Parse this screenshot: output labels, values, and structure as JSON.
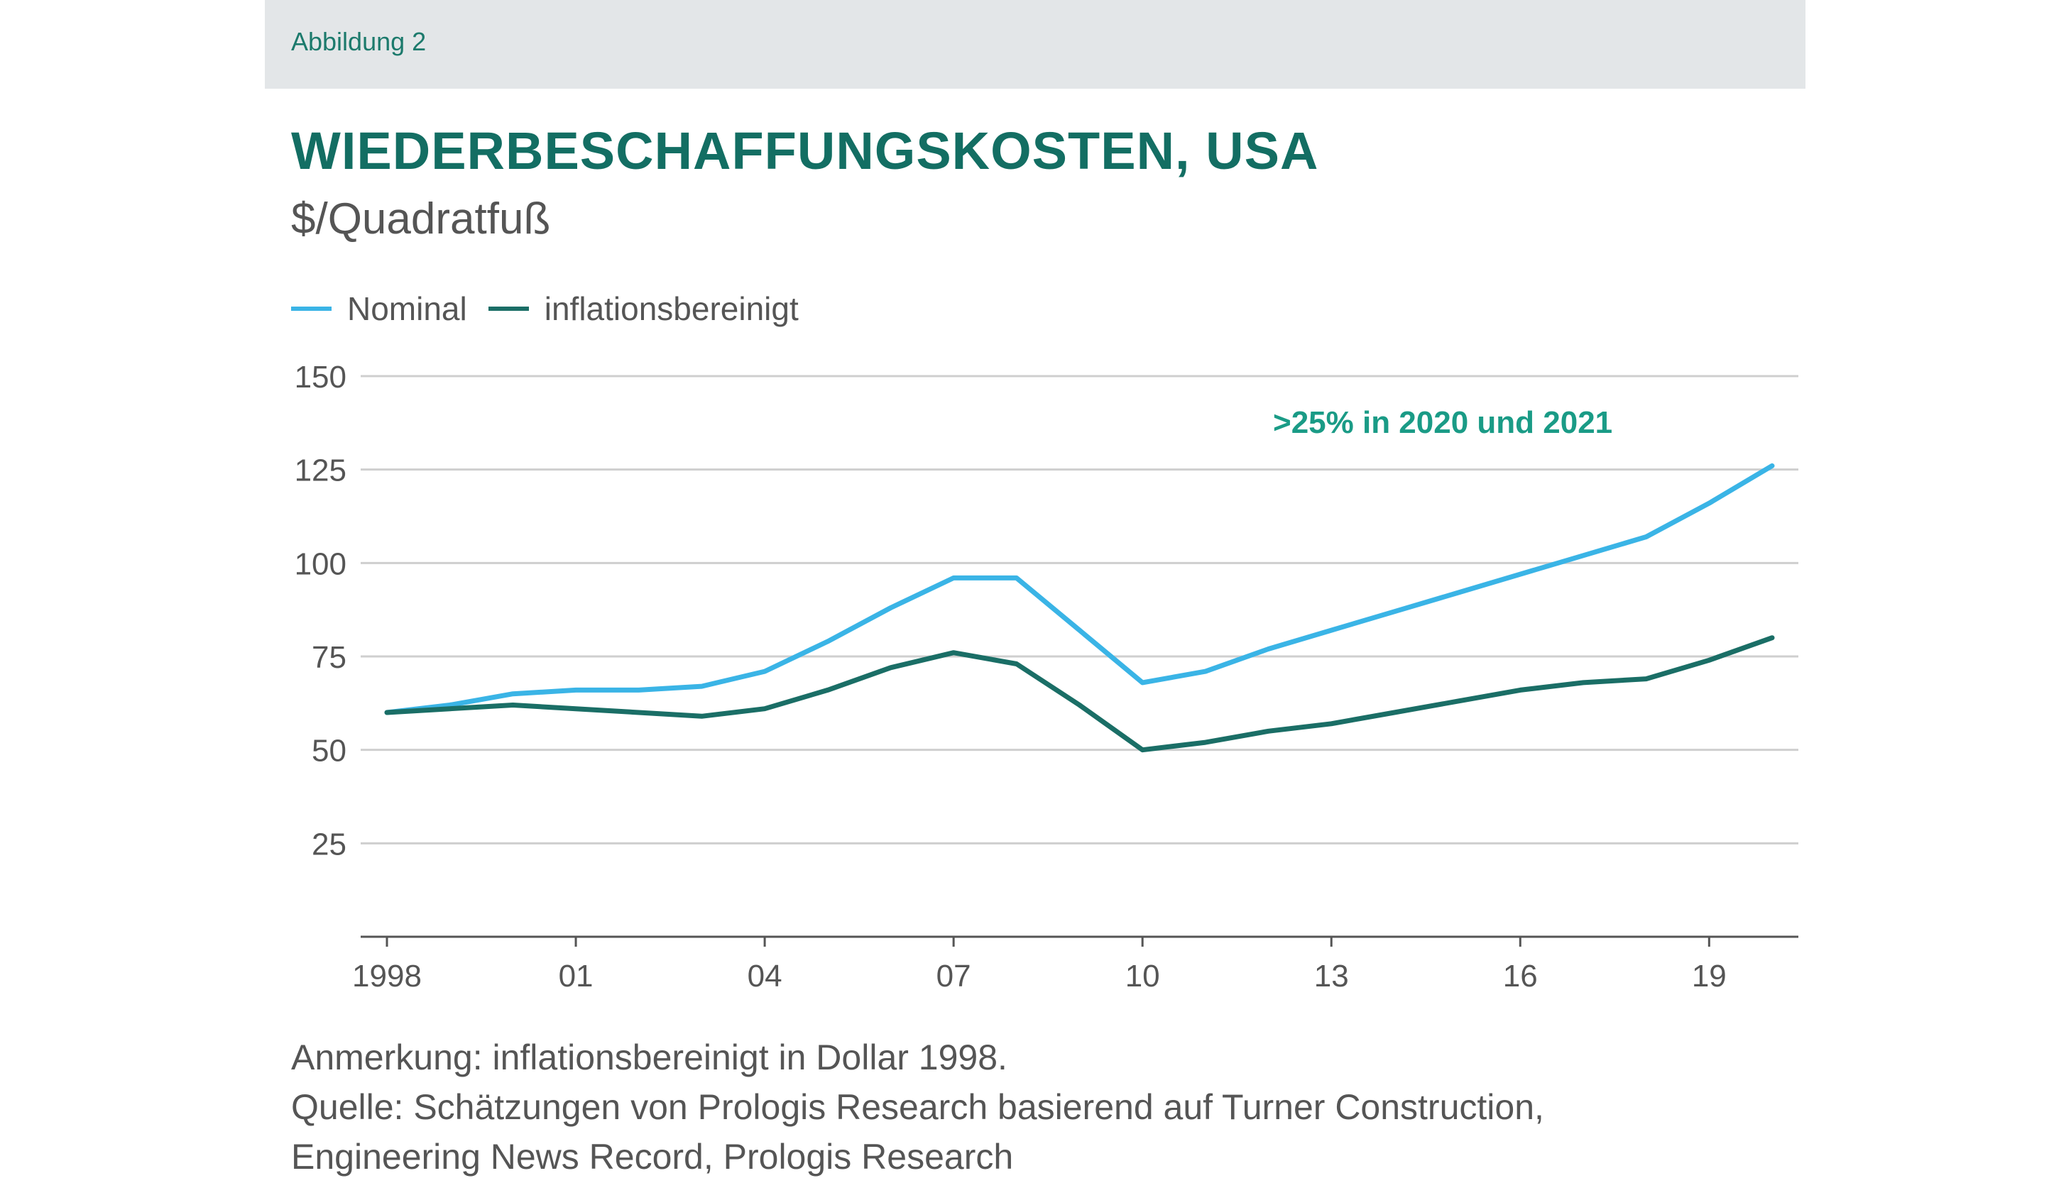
{
  "header": {
    "figure_label": "Abbildung 2"
  },
  "title": "WIEDERBESCHAFFUNGSKOSTEN, USA",
  "subtitle": "$/Quadratfuß",
  "legend": [
    {
      "label": "Nominal",
      "color": "#3ab4e6"
    },
    {
      "label": "inflationsbereinigt",
      "color": "#1a6e66"
    }
  ],
  "chart_data": {
    "type": "line",
    "title": "WIEDERBESCHAFFUNGSKOSTEN, USA",
    "ylabel": "$/Quadratfuß",
    "xlabel": "",
    "x": [
      1998,
      1999,
      2000,
      2001,
      2002,
      2003,
      2004,
      2005,
      2006,
      2007,
      2008,
      2009,
      2010,
      2011,
      2012,
      2013,
      2014,
      2015,
      2016,
      2017,
      2018,
      2019,
      2020
    ],
    "series": [
      {
        "name": "Nominal",
        "color": "#3ab4e6",
        "values": [
          60,
          62,
          65,
          66,
          66,
          67,
          71,
          79,
          88,
          96,
          96,
          82,
          68,
          71,
          77,
          82,
          87,
          92,
          97,
          102,
          107,
          116,
          126
        ]
      },
      {
        "name": "inflationsbereinigt",
        "color": "#1a6e66",
        "values": [
          60,
          61,
          62,
          61,
          60,
          59,
          61,
          66,
          72,
          76,
          73,
          62,
          50,
          52,
          55,
          57,
          60,
          63,
          66,
          68,
          69,
          74,
          80
        ]
      }
    ],
    "ylim": [
      0,
      150
    ],
    "yticks": [
      25,
      50,
      75,
      100,
      125,
      150
    ],
    "xlim": [
      1998,
      2020
    ],
    "xticks": [
      1998,
      2001,
      2004,
      2007,
      2010,
      2013,
      2016,
      2019
    ],
    "xtick_labels": [
      "1998",
      "01",
      "04",
      "07",
      "10",
      "13",
      "16",
      "19"
    ],
    "grid": true,
    "legend_position": "top-left",
    "annotation": {
      "text": ">25% in 2020 und 2021",
      "color": "#1a9b86"
    }
  },
  "notes": [
    "Anmerkung: inflationsbereinigt in Dollar 1998.",
    "Quelle: Schätzungen von Prologis Research basierend auf Turner Construction,",
    "Engineering News Record, Prologis Research"
  ]
}
